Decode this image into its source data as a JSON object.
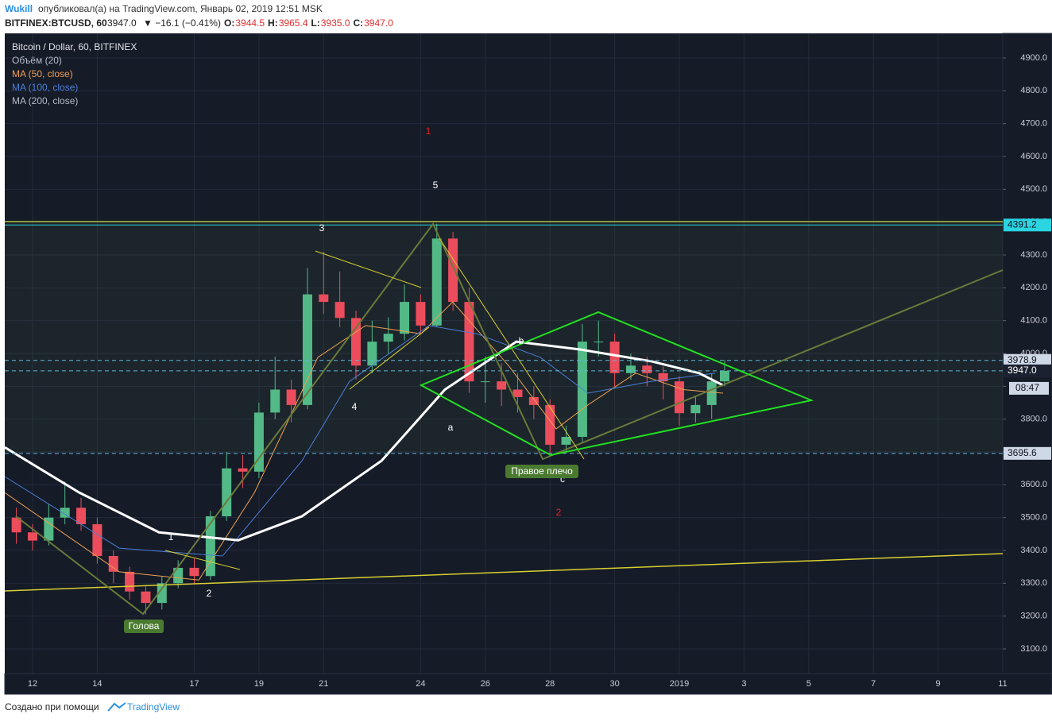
{
  "header": {
    "author": "Wukill",
    "published": "опубликовал(а) на TradingView.com, Январь 02, 2019 12:51 MSK",
    "symbol": "BITFINEX:BTCUSD, 60",
    "last": "3947.0",
    "change": "▼ −16.1 (−0.41%)",
    "ohlc": [
      {
        "label": "O:",
        "value": "3944.5"
      },
      {
        "label": "H:",
        "value": "3965.4"
      },
      {
        "label": "L:",
        "value": "3935.0"
      },
      {
        "label": "C:",
        "value": "3947.0"
      }
    ]
  },
  "legend": [
    "Bitcoin / Dollar, 60, BITFINEX",
    "Объём (20)",
    "MA (50, close)",
    "MA (100, close)",
    "MA (200, close)"
  ],
  "annotations": [
    "1",
    "5",
    "3",
    "4",
    "a",
    "b",
    "c",
    "2",
    "1",
    "2",
    "Голова",
    "Правое плечо"
  ],
  "footer": {
    "text": "Создано при помощи",
    "brand": "TradingView"
  },
  "chart_data": {
    "type": "candlestick",
    "up_color": "#53b987",
    "down_color": "#eb4d5c",
    "x": [
      -0.5,
      0,
      0.5,
      1,
      1.5,
      2,
      2.5,
      3,
      3.5,
      4,
      4.5,
      5,
      5.5,
      6,
      6.5,
      7,
      7.5,
      8,
      8.5,
      9,
      9.5,
      10,
      10.5,
      11,
      11.5,
      12,
      12.5,
      13,
      13.5,
      14,
      14.5,
      15,
      15.5,
      16,
      16.5,
      17,
      17.5,
      18,
      18.5,
      19,
      19.5,
      20,
      20.5,
      21,
      21.4
    ],
    "open": [
      3500,
      3455,
      3430,
      3500,
      3530,
      3480,
      3383,
      3335,
      3275,
      3240,
      3300,
      3347,
      3322,
      3504,
      3650,
      3640,
      3820,
      3890,
      3843,
      4180,
      4157,
      4108,
      3963,
      4036,
      4060,
      4157,
      4085,
      4350,
      4157,
      3915,
      3915,
      3890,
      3867,
      3843,
      3722,
      3746,
      4036,
      4036,
      3940,
      3963,
      3940,
      3915,
      3818,
      3843,
      3915
    ],
    "high": [
      3530,
      3480,
      3540,
      3610,
      3560,
      3500,
      3400,
      3350,
      3290,
      3320,
      3370,
      3375,
      3520,
      3700,
      3690,
      3850,
      3990,
      3920,
      4260,
      4310,
      4250,
      4130,
      4100,
      4110,
      4210,
      4180,
      4395,
      4370,
      4200,
      3990,
      3970,
      3940,
      3900,
      3860,
      3780,
      4090,
      4100,
      4060,
      4000,
      3990,
      3960,
      3930,
      3870,
      3940,
      3980
    ],
    "low": [
      3420,
      3400,
      3415,
      3480,
      3460,
      3360,
      3300,
      3250,
      3205,
      3220,
      3285,
      3300,
      3310,
      3490,
      3590,
      3620,
      3800,
      3790,
      3830,
      4120,
      4080,
      3920,
      3940,
      4000,
      4040,
      4060,
      4080,
      4130,
      3880,
      3850,
      3840,
      3820,
      3800,
      3690,
      3700,
      3730,
      3990,
      3900,
      3920,
      3900,
      3860,
      3780,
      3790,
      3800,
      3900
    ],
    "close": [
      3455,
      3430,
      3500,
      3530,
      3480,
      3383,
      3335,
      3275,
      3240,
      3300,
      3347,
      3322,
      3504,
      3650,
      3640,
      3820,
      3890,
      3843,
      4180,
      4157,
      4108,
      3963,
      4036,
      4060,
      4157,
      4085,
      4350,
      4157,
      3915,
      3915,
      3890,
      3867,
      3843,
      3722,
      3746,
      4036,
      4036,
      3940,
      3963,
      3940,
      3915,
      3818,
      3843,
      3915,
      3947
    ],
    "series": [
      {
        "name": "MA (50, close)",
        "color": "#f0a050",
        "width": 1,
        "x": [
          -0.86,
          2.68,
          5.14,
          6.86,
          8.82,
          10.3,
          12.01,
          12.99,
          14.72,
          16.19,
          17.17,
          18.65,
          20.12,
          21.35
        ],
        "values": [
          3576,
          3335,
          3310,
          3576,
          3988,
          4085,
          4060,
          4157,
          3963,
          3770,
          3843,
          3940,
          3890,
          3879
        ]
      },
      {
        "name": "MA (100, close)",
        "color": "#4a7fd8",
        "width": 1,
        "x": [
          -0.86,
          2.68,
          5.87,
          8.33,
          9.8,
          12.26,
          13.73,
          15.7,
          17.17,
          19.14,
          21.11
        ],
        "values": [
          3625,
          3407,
          3383,
          3673,
          3915,
          4085,
          4060,
          3988,
          3879,
          3915,
          3940
        ]
      },
      {
        "name": "MA (200, close)",
        "color": "#ffffff",
        "width": 3,
        "x": [
          -0.86,
          1.45,
          3.91,
          6.36,
          8.33,
          10.79,
          12.75,
          14.96,
          16.93,
          19.14,
          20.61,
          21.35
        ],
        "values": [
          3714,
          3576,
          3455,
          3431,
          3504,
          3673,
          3890,
          4036,
          4012,
          3976,
          3940,
          3903
        ]
      }
    ],
    "hlines": [
      {
        "value": 4391.2,
        "label": "4391.2",
        "color": "#2ad4e0",
        "dash": false,
        "bg": "#2ad4e0",
        "fg": "#10141e"
      },
      {
        "value": 3978.9,
        "label": "3978.9",
        "color": "#5fb8d8",
        "dash": true,
        "bg": "#cfd8e6",
        "fg": "#10141e"
      },
      {
        "value": 3947,
        "label": "3947.0",
        "color": "#5fb8d8",
        "dash": true,
        "bg": "#1b2130",
        "fg": "#ffffff"
      },
      {
        "value": 3695.6,
        "label": "3695.6",
        "color": "#5fb8d8",
        "dash": true,
        "bg": "#cfd8e6",
        "fg": "#10141e"
      }
    ],
    "countdown": "08:47",
    "xlim": [
      -0.86,
      30
    ],
    "ylim": [
      3025,
      4975
    ],
    "xticks": [
      {
        "value": 0,
        "label": "12"
      },
      {
        "value": 2,
        "label": "14"
      },
      {
        "value": 5,
        "label": "17"
      },
      {
        "value": 7,
        "label": "19"
      },
      {
        "value": 9,
        "label": "21"
      },
      {
        "value": 12,
        "label": "24"
      },
      {
        "value": 14,
        "label": "26"
      },
      {
        "value": 16,
        "label": "28"
      },
      {
        "value": 18,
        "label": "30"
      },
      {
        "value": 20,
        "label": "2019"
      },
      {
        "value": 22,
        "label": "3"
      },
      {
        "value": 24,
        "label": "5"
      },
      {
        "value": 26,
        "label": "7"
      },
      {
        "value": 28,
        "label": "9"
      },
      {
        "value": 30,
        "label": "11"
      }
    ],
    "yticks": [
      {
        "value": 3100,
        "label": "3100.0"
      },
      {
        "value": 3200,
        "label": "3200.0"
      },
      {
        "value": 3300,
        "label": "3300.0"
      },
      {
        "value": 3400,
        "label": "3400.0"
      },
      {
        "value": 3500,
        "label": "3500.0"
      },
      {
        "value": 3600,
        "label": "3600.0"
      },
      {
        "value": 3700,
        "label": "3700.0"
      },
      {
        "value": 3800,
        "label": "3800.0"
      },
      {
        "value": 3900,
        "label": "3900.0"
      },
      {
        "value": 4000,
        "label": "4000.0"
      },
      {
        "value": 4100,
        "label": "4100.0"
      },
      {
        "value": 4200,
        "label": "4200.0"
      },
      {
        "value": 4300,
        "label": "4300.0"
      },
      {
        "value": 4400,
        "label": "4400.0"
      },
      {
        "value": 4500,
        "label": "4500.0"
      },
      {
        "value": 4600,
        "label": "4600.0"
      },
      {
        "value": 4700,
        "label": "4700.0"
      },
      {
        "value": 4800,
        "label": "4800.0"
      },
      {
        "value": 4900,
        "label": "4900.0"
      }
    ],
    "grid": true
  }
}
